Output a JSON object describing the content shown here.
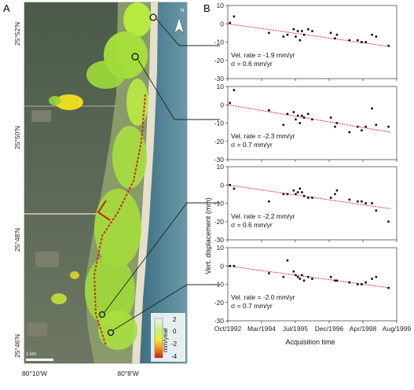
{
  "figure": {
    "panel_a_letter": "A",
    "panel_b_letter": "B",
    "map": {
      "lat_labels": [
        "25°52'N",
        "25°50'N",
        "25°48'N",
        "25°46'N"
      ],
      "lon_labels": [
        "80°10'W",
        "80°8'W"
      ],
      "scale_label": "1 km",
      "north_label": "N",
      "colorbar": {
        "title": "mm/year",
        "ticks": [
          "2",
          "0",
          "-2",
          "-4"
        ],
        "colors": [
          "#e8f5ee",
          "#c8ef74",
          "#f2ea22",
          "#f07d10",
          "#d81e06"
        ]
      }
    }
  },
  "chart_data": [
    {
      "type": "scatter",
      "ylabel": "Vert. displacement (mm)",
      "xlabel": "Acquisition time",
      "ylim": [
        -30,
        10
      ],
      "yticks": [
        10,
        0,
        -10,
        -20,
        -30
      ],
      "xlim": [
        "1992-10-01",
        "1999-08-01"
      ],
      "xticks": [
        "Oct/1992",
        "Mar/1994",
        "Jul/1995",
        "Dec/1996",
        "Apr/1998",
        "Aug/1999"
      ],
      "annotation": [
        "Vel. rate = -1.9 mm/yr",
        "σ = 0.6 mm/yr"
      ],
      "trend": [
        [
          "1992-10-01",
          0
        ],
        [
          "1999-05-01",
          -12.5
        ]
      ],
      "points": [
        [
          "1992-11-01",
          0.5
        ],
        [
          "1993-01-01",
          4
        ],
        [
          "1994-06-01",
          -5
        ],
        [
          "1995-01-01",
          -7
        ],
        [
          "1995-03-01",
          -6
        ],
        [
          "1995-06-01",
          -3
        ],
        [
          "1995-07-01",
          -7
        ],
        [
          "1995-08-01",
          -4
        ],
        [
          "1995-09-01",
          -9
        ],
        [
          "1995-10-01",
          -4
        ],
        [
          "1995-11-01",
          -6
        ],
        [
          "1996-01-01",
          -3
        ],
        [
          "1996-03-01",
          -4
        ],
        [
          "1996-12-01",
          -5
        ],
        [
          "1997-02-01",
          -8
        ],
        [
          "1997-03-01",
          -6
        ],
        [
          "1997-09-01",
          -9
        ],
        [
          "1998-01-01",
          -9
        ],
        [
          "1998-03-01",
          -10
        ],
        [
          "1998-05-01",
          -10
        ],
        [
          "1998-08-01",
          -6
        ],
        [
          "1998-10-01",
          -7
        ],
        [
          "1999-04-01",
          -12
        ]
      ]
    },
    {
      "type": "scatter",
      "ylim": [
        -30,
        10
      ],
      "yticks": [
        10,
        0,
        -10,
        -20,
        -30
      ],
      "annotation": [
        "Vel. rate = -2.3 mm/yr",
        "σ = 0.7 mm/yr"
      ],
      "trend": [
        [
          "1992-10-01",
          0
        ],
        [
          "1999-05-01",
          -15
        ]
      ],
      "points": [
        [
          "1992-11-01",
          1
        ],
        [
          "1993-01-01",
          8
        ],
        [
          "1994-06-01",
          -3
        ],
        [
          "1995-01-01",
          -11
        ],
        [
          "1995-03-01",
          -5
        ],
        [
          "1995-06-01",
          -4
        ],
        [
          "1995-07-01",
          -8
        ],
        [
          "1995-08-01",
          -6
        ],
        [
          "1995-09-01",
          -10
        ],
        [
          "1995-10-01",
          -6
        ],
        [
          "1995-11-01",
          -7
        ],
        [
          "1996-01-01",
          -5
        ],
        [
          "1996-03-01",
          -8
        ],
        [
          "1996-12-01",
          -7
        ],
        [
          "1997-02-01",
          -12
        ],
        [
          "1997-03-01",
          -10
        ],
        [
          "1997-09-01",
          -15
        ],
        [
          "1998-01-01",
          -12
        ],
        [
          "1998-03-01",
          -14
        ],
        [
          "1998-05-01",
          -12
        ],
        [
          "1998-08-01",
          -2
        ],
        [
          "1998-10-01",
          -11
        ],
        [
          "1999-04-01",
          -12
        ]
      ]
    },
    {
      "type": "scatter",
      "ylim": [
        -30,
        10
      ],
      "yticks": [
        10,
        0,
        -10,
        -20,
        -30
      ],
      "annotation": [
        "Vel. rate = -2.2 mm/yr",
        "σ = 0.6 mm/yr"
      ],
      "trend": [
        [
          "1992-10-01",
          0
        ],
        [
          "1999-05-01",
          -13
        ]
      ],
      "points": [
        [
          "1992-11-01",
          0
        ],
        [
          "1993-01-01",
          -2
        ],
        [
          "1994-06-01",
          -9
        ],
        [
          "1995-01-01",
          -5
        ],
        [
          "1995-03-01",
          -5
        ],
        [
          "1995-06-01",
          -3
        ],
        [
          "1995-07-01",
          -5
        ],
        [
          "1995-08-01",
          -4
        ],
        [
          "1995-09-01",
          -2
        ],
        [
          "1995-10-01",
          -4
        ],
        [
          "1995-11-01",
          -6
        ],
        [
          "1996-01-01",
          -7
        ],
        [
          "1996-03-01",
          -7
        ],
        [
          "1996-12-01",
          -7
        ],
        [
          "1997-02-01",
          -5
        ],
        [
          "1997-03-01",
          -3
        ],
        [
          "1997-09-01",
          -8
        ],
        [
          "1998-01-01",
          -9
        ],
        [
          "1998-03-01",
          -9
        ],
        [
          "1998-05-01",
          -10
        ],
        [
          "1998-08-01",
          -10
        ],
        [
          "1998-10-01",
          -14
        ],
        [
          "1999-04-01",
          -20
        ]
      ]
    },
    {
      "type": "scatter",
      "ylim": [
        -30,
        10
      ],
      "yticks": [
        10,
        0,
        -10,
        -20,
        -30
      ],
      "annotation": [
        "Vel. rate = -2.0 mm/yr",
        "σ = 0.7 mm/yr"
      ],
      "trend": [
        [
          "1992-10-01",
          0
        ],
        [
          "1999-05-01",
          -12
        ]
      ],
      "points": [
        [
          "1992-11-01",
          0
        ],
        [
          "1993-01-01",
          0
        ],
        [
          "1994-06-01",
          -4
        ],
        [
          "1995-01-01",
          -6
        ],
        [
          "1995-03-01",
          3
        ],
        [
          "1995-06-01",
          -3
        ],
        [
          "1995-07-01",
          -5
        ],
        [
          "1995-08-01",
          -6
        ],
        [
          "1995-09-01",
          -7
        ],
        [
          "1995-10-01",
          -5
        ],
        [
          "1995-11-01",
          -8
        ],
        [
          "1996-01-01",
          -6
        ],
        [
          "1996-03-01",
          -7
        ],
        [
          "1996-12-01",
          -6
        ],
        [
          "1997-02-01",
          -8
        ],
        [
          "1997-03-01",
          -8
        ],
        [
          "1997-09-01",
          -9
        ],
        [
          "1998-01-01",
          -10
        ],
        [
          "1998-03-01",
          -10
        ],
        [
          "1998-05-01",
          -9
        ],
        [
          "1998-08-01",
          -7
        ],
        [
          "1998-10-01",
          -6
        ],
        [
          "1999-04-01",
          -12
        ]
      ]
    }
  ]
}
